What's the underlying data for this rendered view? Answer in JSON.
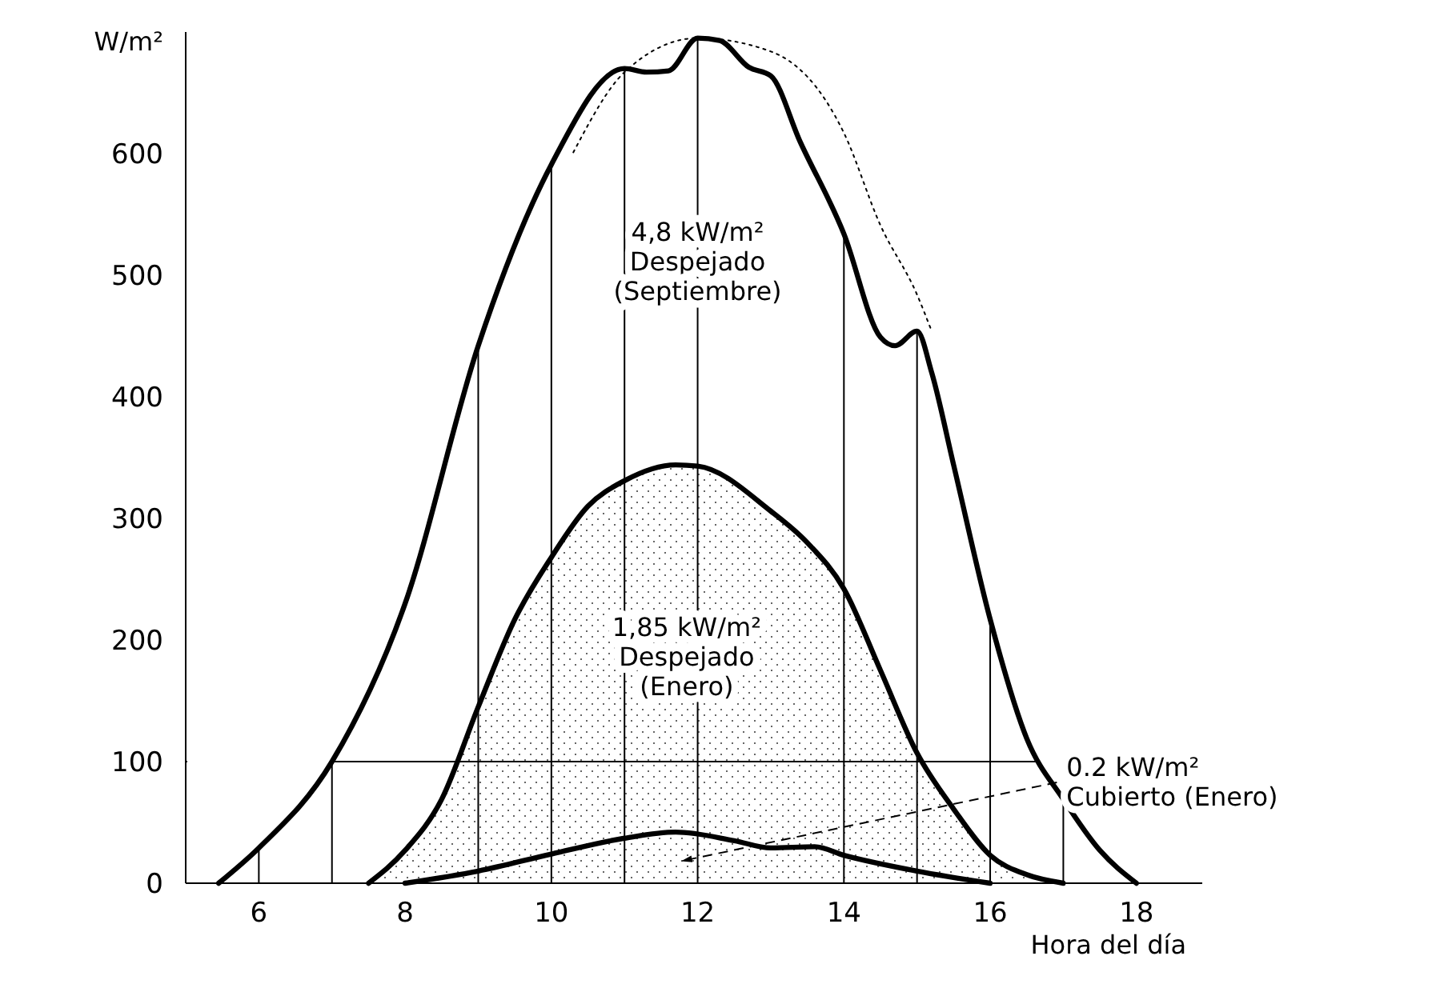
{
  "chart_data": {
    "type": "line",
    "xlabel": "Hora del día",
    "ylabel": "W/m²",
    "xlim": [
      5,
      18.9
    ],
    "ylim": [
      0,
      700
    ],
    "xticks": [
      6,
      8,
      10,
      12,
      14,
      16,
      18
    ],
    "yticks": [
      0,
      100,
      200,
      300,
      400,
      500,
      600
    ],
    "grid": false,
    "marker": "none",
    "series": [
      {
        "color": "#000000",
        "x": [
          5.45,
          6,
          7,
          8,
          9,
          10,
          11,
          11.3,
          11.6,
          12,
          12.3,
          12.7,
          13,
          13.4,
          14,
          14.5,
          14.7,
          15,
          15.2,
          15.5,
          16,
          16.5,
          17,
          17.5,
          18
        ],
        "values": [
          0,
          29,
          100,
          230,
          442,
          591,
          670,
          667,
          668,
          695,
          693,
          671,
          664,
          610,
          534,
          449,
          442,
          454,
          420,
          344,
          217,
          119,
          69,
          27,
          0
        ]
      },
      {
        "type": "area",
        "color": "#000000",
        "x": [
          7.5,
          8,
          8.5,
          9,
          9.5,
          10,
          10.5,
          11,
          11.7,
          12,
          13,
          13.5,
          14,
          14.5,
          15,
          15.5,
          16,
          16.5,
          17
        ],
        "values": [
          0,
          27,
          69,
          145,
          217,
          268,
          310,
          331,
          344,
          343,
          306,
          280,
          242,
          175,
          107,
          61,
          23,
          7,
          0
        ]
      },
      {
        "color": "#000000",
        "x": [
          8,
          9,
          10,
          11,
          11.7,
          12.5,
          13,
          13.6,
          14,
          15,
          16
        ],
        "values": [
          0,
          10,
          24,
          37,
          42,
          35,
          29,
          30,
          23,
          10,
          0
        ]
      },
      {
        "color": "#000000",
        "line_style": "dotted",
        "x": [
          10.3,
          11,
          12,
          13,
          14,
          14.5,
          15,
          15.2
        ],
        "values": [
          601,
          667,
          695,
          684,
          617,
          541,
          484,
          454
        ]
      }
    ],
    "ref_lines": [
      {
        "axis": "y",
        "value": 100
      },
      {
        "axis": "x",
        "value": 6
      },
      {
        "axis": "x",
        "value": 7
      },
      {
        "axis": "x",
        "value": 9
      },
      {
        "axis": "x",
        "value": 10
      },
      {
        "axis": "x",
        "value": 11
      },
      {
        "axis": "x",
        "value": 12
      },
      {
        "axis": "x",
        "value": 14
      },
      {
        "axis": "x",
        "value": 15
      },
      {
        "axis": "x",
        "value": 16
      },
      {
        "axis": "x",
        "value": 17
      }
    ],
    "annotations": [
      "4,8 kW/m²\nDespejado\n(Septiembre)",
      "1,85 kW/m²\nDespejado\n(Enero)",
      "0.2 kW/m²\nCubierto (Enero)"
    ]
  }
}
